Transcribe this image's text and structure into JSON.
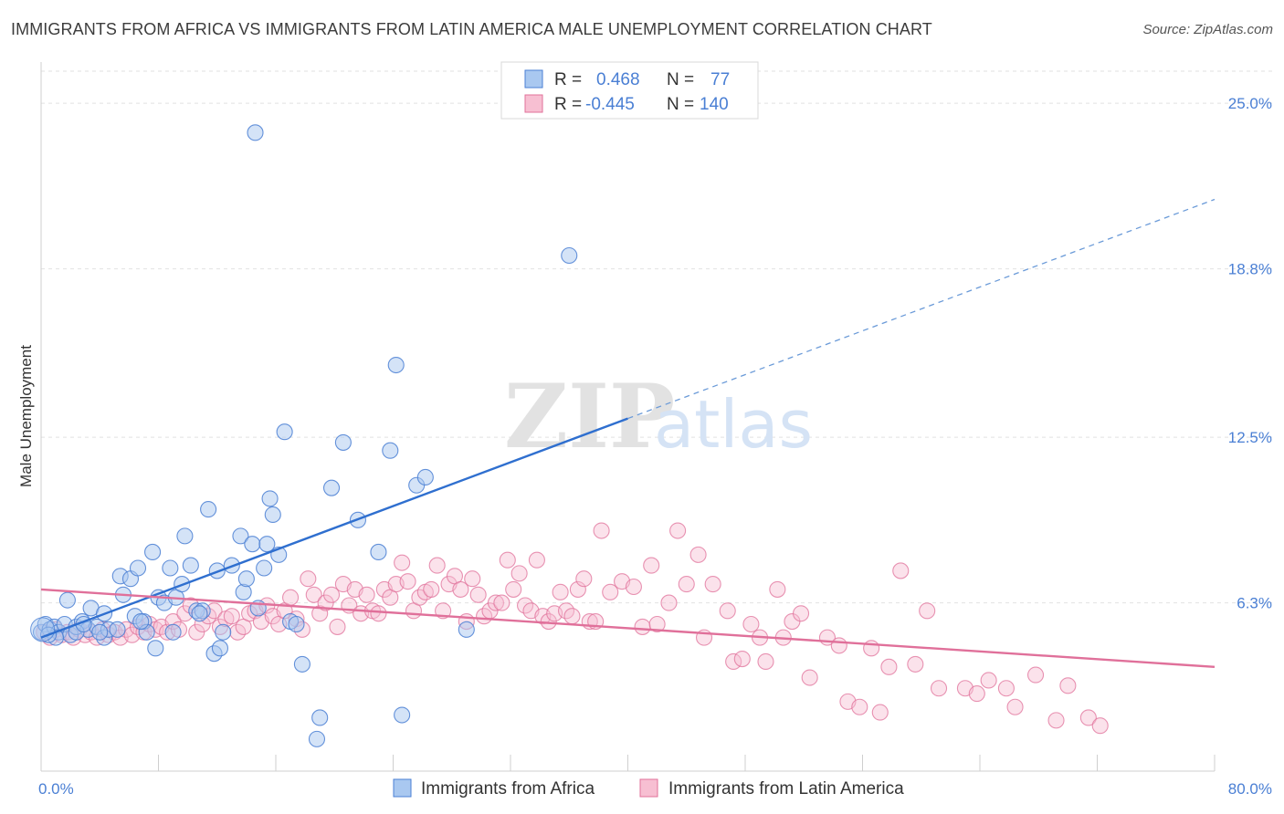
{
  "title": "IMMIGRANTS FROM AFRICA VS IMMIGRANTS FROM LATIN AMERICA MALE UNEMPLOYMENT CORRELATION CHART",
  "source": "Source: ZipAtlas.com",
  "watermark": {
    "zip": "ZIP",
    "atlas": "atlas"
  },
  "colors": {
    "blue": "#4a7fd4",
    "blue_fill": "#a9c8f0",
    "pink": "#e0709a",
    "pink_fill": "#f7bfd2"
  },
  "chart_data": {
    "type": "scatter",
    "xlabel": "",
    "ylabel": "Male Unemployment",
    "xlim": [
      0,
      80
    ],
    "ylim": [
      0,
      26.2
    ],
    "x_tick_labels": [
      "0.0%",
      "80.0%"
    ],
    "y_ticks": [
      6.3,
      12.5,
      18.8,
      25.0
    ],
    "y_tick_labels": [
      "6.3%",
      "12.5%",
      "18.8%",
      "25.0%"
    ],
    "grid": true,
    "legend": {
      "position": "top-center",
      "rows": [
        {
          "r_label": "R =",
          "r_value": "0.468",
          "n_label": "N =",
          "n_value": "77"
        },
        {
          "r_label": "R =",
          "r_value": "-0.445",
          "n_label": "N =",
          "n_value": "140"
        }
      ]
    },
    "series": [
      {
        "name": "Immigrants from Africa",
        "color": "#4a7fd4",
        "trend": {
          "x0": 0,
          "y0": 5.0,
          "x1": 40,
          "y1": 13.2,
          "dashed_to_x": 80,
          "dashed_to_y": 21.4
        },
        "points": [
          [
            0.0,
            5.2
          ],
          [
            0.3,
            5.5
          ],
          [
            0.6,
            5.3
          ],
          [
            0.9,
            5.4
          ],
          [
            1.2,
            5.2
          ],
          [
            1.6,
            5.5
          ],
          [
            2.0,
            5.1
          ],
          [
            2.4,
            5.4
          ],
          [
            2.8,
            5.6
          ],
          [
            3.2,
            5.3
          ],
          [
            1.8,
            6.4
          ],
          [
            3.4,
            6.1
          ],
          [
            3.8,
            5.4
          ],
          [
            4.3,
            5.0
          ],
          [
            4.6,
            5.3
          ],
          [
            4.3,
            5.9
          ],
          [
            5.2,
            5.3
          ],
          [
            5.6,
            6.6
          ],
          [
            5.4,
            7.3
          ],
          [
            6.1,
            7.2
          ],
          [
            6.4,
            5.8
          ],
          [
            6.6,
            7.6
          ],
          [
            7.0,
            5.6
          ],
          [
            7.2,
            5.2
          ],
          [
            7.6,
            8.2
          ],
          [
            7.8,
            4.6
          ],
          [
            8.0,
            6.5
          ],
          [
            8.4,
            6.3
          ],
          [
            8.8,
            7.6
          ],
          [
            9.0,
            5.2
          ],
          [
            9.2,
            6.5
          ],
          [
            9.6,
            7.0
          ],
          [
            9.8,
            8.8
          ],
          [
            10.2,
            7.7
          ],
          [
            10.6,
            6.0
          ],
          [
            11.0,
            6.0
          ],
          [
            11.4,
            9.8
          ],
          [
            11.8,
            4.4
          ],
          [
            12.0,
            7.5
          ],
          [
            12.2,
            4.6
          ],
          [
            12.4,
            5.2
          ],
          [
            13.0,
            7.7
          ],
          [
            13.6,
            8.8
          ],
          [
            13.8,
            6.7
          ],
          [
            14.0,
            7.2
          ],
          [
            14.4,
            8.5
          ],
          [
            14.8,
            6.1
          ],
          [
            15.2,
            7.6
          ],
          [
            15.4,
            8.5
          ],
          [
            15.6,
            10.2
          ],
          [
            15.8,
            9.6
          ],
          [
            16.2,
            8.1
          ],
          [
            16.6,
            12.7
          ],
          [
            17.0,
            5.6
          ],
          [
            17.4,
            5.5
          ],
          [
            17.8,
            4.0
          ],
          [
            18.8,
            1.2
          ],
          [
            19.0,
            2.0
          ],
          [
            19.8,
            10.6
          ],
          [
            20.6,
            12.3
          ],
          [
            21.6,
            9.4
          ],
          [
            23.0,
            8.2
          ],
          [
            23.8,
            12.0
          ],
          [
            24.2,
            15.2
          ],
          [
            24.6,
            2.1
          ],
          [
            25.6,
            10.7
          ],
          [
            26.2,
            11.0
          ],
          [
            29.0,
            5.3
          ],
          [
            36.0,
            19.3
          ],
          [
            14.6,
            23.9
          ],
          [
            2.4,
            5.2
          ],
          [
            4.0,
            5.2
          ],
          [
            10.8,
            5.9
          ],
          [
            6.8,
            5.6
          ],
          [
            1.0,
            5.0
          ],
          [
            0.5,
            5.1
          ],
          [
            2.9,
            5.5
          ]
        ]
      },
      {
        "name": "Immigrants from Latin America",
        "color": "#e0709a",
        "trend": {
          "x0": 0,
          "y0": 6.8,
          "x1": 80,
          "y1": 3.9
        },
        "points": [
          [
            0.2,
            5.2
          ],
          [
            0.6,
            5.0
          ],
          [
            1.0,
            5.3
          ],
          [
            1.4,
            5.1
          ],
          [
            1.8,
            5.2
          ],
          [
            2.2,
            5.0
          ],
          [
            2.6,
            5.3
          ],
          [
            3.0,
            5.1
          ],
          [
            3.4,
            5.2
          ],
          [
            3.8,
            5.0
          ],
          [
            4.2,
            5.3
          ],
          [
            4.6,
            5.1
          ],
          [
            5.0,
            5.2
          ],
          [
            5.4,
            5.0
          ],
          [
            5.8,
            5.3
          ],
          [
            6.2,
            5.1
          ],
          [
            6.6,
            5.4
          ],
          [
            7.0,
            5.2
          ],
          [
            7.4,
            5.5
          ],
          [
            7.8,
            5.3
          ],
          [
            8.2,
            5.4
          ],
          [
            8.6,
            5.2
          ],
          [
            9.0,
            5.6
          ],
          [
            9.4,
            5.3
          ],
          [
            9.8,
            5.9
          ],
          [
            10.2,
            6.2
          ],
          [
            10.6,
            5.2
          ],
          [
            11.0,
            5.5
          ],
          [
            11.4,
            5.8
          ],
          [
            11.8,
            6.0
          ],
          [
            12.2,
            5.4
          ],
          [
            12.6,
            5.7
          ],
          [
            13.0,
            5.8
          ],
          [
            13.4,
            5.2
          ],
          [
            13.8,
            5.4
          ],
          [
            14.2,
            5.9
          ],
          [
            14.6,
            6.0
          ],
          [
            15.0,
            5.6
          ],
          [
            15.4,
            6.2
          ],
          [
            15.8,
            5.8
          ],
          [
            16.2,
            5.5
          ],
          [
            16.6,
            6.0
          ],
          [
            17.0,
            6.5
          ],
          [
            17.4,
            5.7
          ],
          [
            17.8,
            5.3
          ],
          [
            18.2,
            7.2
          ],
          [
            18.6,
            6.6
          ],
          [
            19.0,
            5.9
          ],
          [
            19.4,
            6.3
          ],
          [
            19.8,
            6.6
          ],
          [
            20.2,
            5.4
          ],
          [
            20.6,
            7.0
          ],
          [
            21.0,
            6.2
          ],
          [
            21.4,
            6.8
          ],
          [
            21.8,
            5.9
          ],
          [
            22.2,
            6.6
          ],
          [
            22.6,
            6.0
          ],
          [
            23.0,
            5.9
          ],
          [
            23.4,
            6.8
          ],
          [
            23.8,
            6.5
          ],
          [
            24.2,
            7.0
          ],
          [
            24.6,
            7.8
          ],
          [
            25.0,
            7.1
          ],
          [
            25.4,
            6.0
          ],
          [
            25.8,
            6.5
          ],
          [
            26.2,
            6.7
          ],
          [
            26.6,
            6.8
          ],
          [
            27.0,
            7.7
          ],
          [
            27.4,
            6.0
          ],
          [
            27.8,
            7.0
          ],
          [
            28.2,
            7.3
          ],
          [
            28.6,
            6.8
          ],
          [
            29.0,
            5.6
          ],
          [
            29.4,
            7.2
          ],
          [
            29.8,
            6.6
          ],
          [
            30.2,
            5.8
          ],
          [
            30.6,
            6.0
          ],
          [
            31.0,
            6.3
          ],
          [
            31.4,
            6.3
          ],
          [
            31.8,
            7.9
          ],
          [
            32.2,
            6.8
          ],
          [
            32.6,
            7.4
          ],
          [
            33.0,
            6.2
          ],
          [
            33.4,
            6.0
          ],
          [
            33.8,
            7.9
          ],
          [
            34.2,
            5.8
          ],
          [
            34.6,
            5.6
          ],
          [
            35.0,
            5.9
          ],
          [
            35.4,
            6.7
          ],
          [
            35.8,
            6.0
          ],
          [
            36.2,
            5.8
          ],
          [
            36.6,
            6.8
          ],
          [
            37.0,
            7.2
          ],
          [
            37.4,
            5.6
          ],
          [
            37.8,
            5.6
          ],
          [
            38.2,
            9.0
          ],
          [
            38.8,
            6.7
          ],
          [
            39.6,
            7.1
          ],
          [
            40.4,
            6.9
          ],
          [
            41.0,
            5.4
          ],
          [
            41.6,
            7.7
          ],
          [
            42.0,
            5.5
          ],
          [
            42.8,
            6.3
          ],
          [
            43.4,
            9.0
          ],
          [
            44.0,
            7.0
          ],
          [
            44.8,
            8.1
          ],
          [
            45.2,
            5.0
          ],
          [
            45.8,
            7.0
          ],
          [
            46.8,
            6.0
          ],
          [
            47.2,
            4.1
          ],
          [
            47.8,
            4.2
          ],
          [
            48.4,
            5.5
          ],
          [
            49.0,
            5.0
          ],
          [
            49.4,
            4.1
          ],
          [
            50.2,
            6.8
          ],
          [
            50.6,
            5.0
          ],
          [
            51.2,
            5.6
          ],
          [
            51.8,
            5.9
          ],
          [
            52.4,
            3.5
          ],
          [
            53.6,
            5.0
          ],
          [
            54.4,
            4.7
          ],
          [
            55.0,
            2.6
          ],
          [
            55.8,
            2.4
          ],
          [
            56.6,
            4.6
          ],
          [
            57.2,
            2.2
          ],
          [
            57.8,
            3.9
          ],
          [
            58.6,
            7.5
          ],
          [
            59.6,
            4.0
          ],
          [
            60.4,
            6.0
          ],
          [
            61.2,
            3.1
          ],
          [
            63.0,
            3.1
          ],
          [
            63.8,
            2.9
          ],
          [
            64.6,
            3.4
          ],
          [
            65.8,
            3.1
          ],
          [
            66.4,
            2.4
          ],
          [
            67.8,
            3.6
          ],
          [
            69.2,
            1.9
          ],
          [
            70.0,
            3.2
          ],
          [
            71.4,
            2.0
          ],
          [
            72.2,
            1.7
          ]
        ]
      }
    ]
  }
}
